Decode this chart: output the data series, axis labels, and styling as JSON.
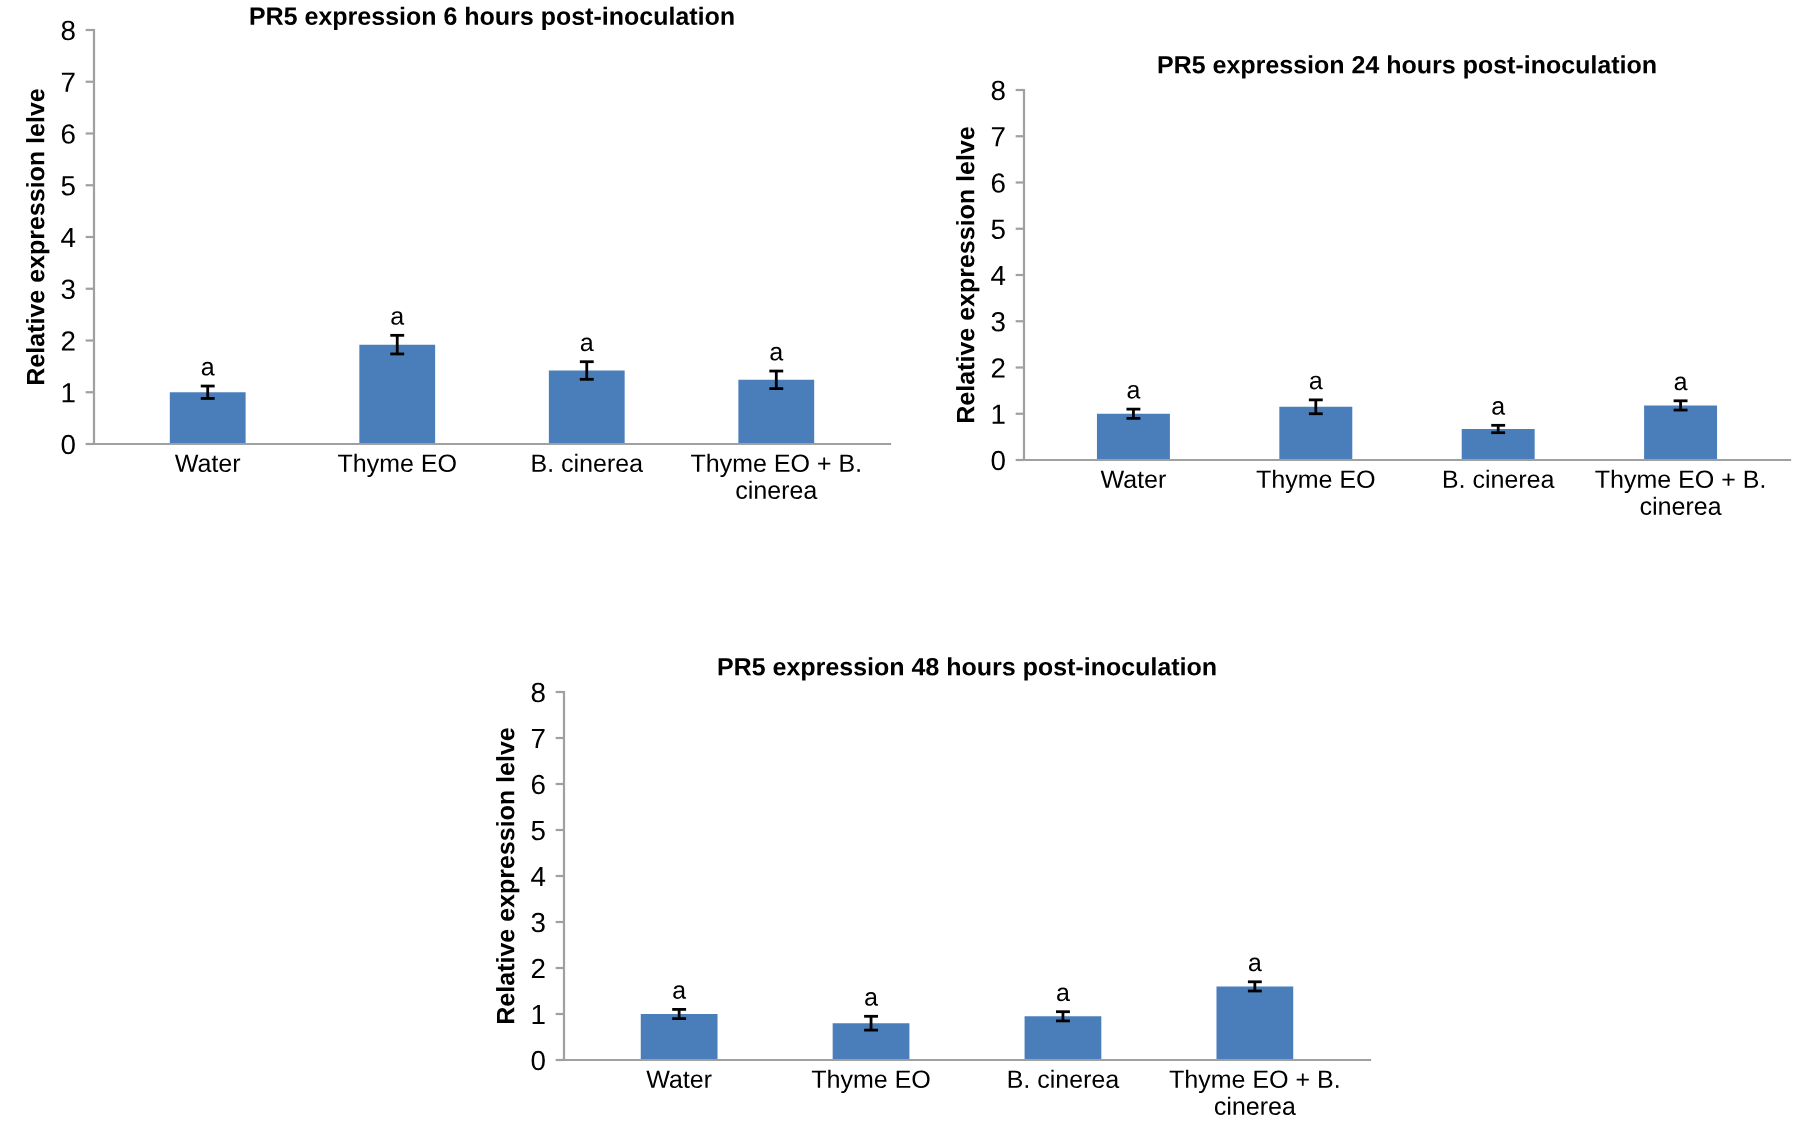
{
  "chart_data": [
    {
      "type": "bar",
      "title": "PR5 expression 6 hours post-inoculation",
      "ylabel": "Relative expression lelve",
      "categories": [
        "Water",
        "Thyme EO",
        "B. cinerea",
        "Thyme EO + B.\ncinerea"
      ],
      "values": [
        1.0,
        1.92,
        1.42,
        1.24
      ],
      "errors": [
        0.12,
        0.18,
        0.17,
        0.17
      ],
      "color": "#4a7ebb",
      "ylim": [
        0,
        8
      ],
      "yticks": [
        0,
        1,
        2,
        3,
        4,
        5,
        6,
        7,
        8
      ],
      "grid": false,
      "annotations": [
        {
          "text": "a",
          "x": "Water",
          "y": 1.12
        },
        {
          "text": "a",
          "x": "Thyme EO",
          "y": 2.1
        },
        {
          "text": "a",
          "x": "B. cinerea",
          "y": 1.59
        },
        {
          "text": "a",
          "x": "Thyme EO + B.\ncinerea",
          "y": 1.41
        }
      ]
    },
    {
      "type": "bar",
      "title": "PR5 expression 24 hours post-inoculation",
      "ylabel": "Relative expression lelve",
      "categories": [
        "Water",
        "Thyme EO",
        "B. cinerea",
        "Thyme EO + B.\ncinerea"
      ],
      "values": [
        1.0,
        1.15,
        0.67,
        1.18
      ],
      "errors": [
        0.1,
        0.15,
        0.08,
        0.1
      ],
      "color": "#4a7ebb",
      "ylim": [
        0,
        8
      ],
      "yticks": [
        0,
        1,
        2,
        3,
        4,
        5,
        6,
        7,
        8
      ],
      "grid": false,
      "annotations": [
        {
          "text": "a",
          "x": "Water",
          "y": 1.1
        },
        {
          "text": "a",
          "x": "Thyme EO",
          "y": 1.3
        },
        {
          "text": "a",
          "x": "B. cinerea",
          "y": 0.75
        },
        {
          "text": "a",
          "x": "Thyme EO + B.\ncinerea",
          "y": 1.28
        }
      ]
    },
    {
      "type": "bar",
      "title": "PR5 expression 48 hours post-inoculation",
      "ylabel": "Relative expression lelve",
      "categories": [
        "Water",
        "Thyme EO",
        "B. cinerea",
        "Thyme EO + B.\ncinerea"
      ],
      "values": [
        1.0,
        0.8,
        0.95,
        1.6
      ],
      "errors": [
        0.1,
        0.15,
        0.1,
        0.1
      ],
      "color": "#4a7ebb",
      "ylim": [
        0,
        8
      ],
      "yticks": [
        0,
        1,
        2,
        3,
        4,
        5,
        6,
        7,
        8
      ],
      "grid": false,
      "annotations": [
        {
          "text": "a",
          "x": "Water",
          "y": 1.1
        },
        {
          "text": "a",
          "x": "Thyme EO",
          "y": 0.95
        },
        {
          "text": "a",
          "x": "B. cinerea",
          "y": 1.05
        },
        {
          "text": "a",
          "x": "Thyme EO + B.\ncinerea",
          "y": 1.7
        }
      ]
    }
  ]
}
